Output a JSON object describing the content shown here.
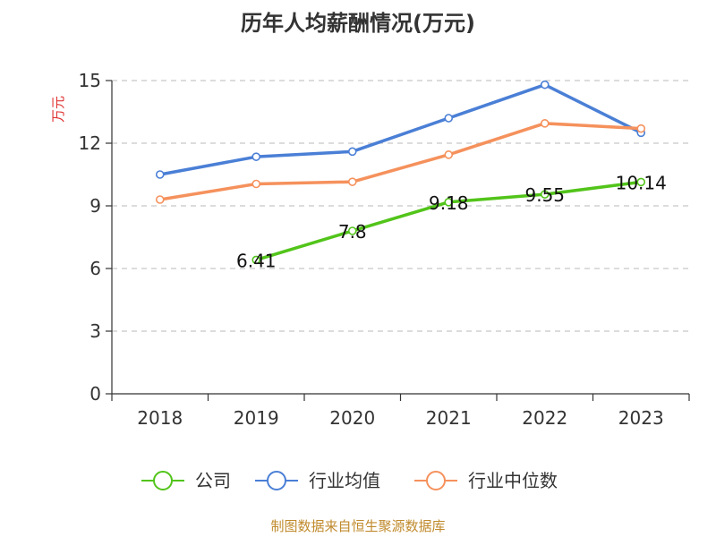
{
  "chart_data": {
    "type": "line",
    "title": "历年人均薪酬情况(万元)",
    "ylabel": "万元",
    "xlabel": "",
    "categories": [
      "2018",
      "2019",
      "2020",
      "2021",
      "2022",
      "2023"
    ],
    "ylim": [
      0,
      15
    ],
    "yticks": [
      "0",
      "3",
      "6",
      "9",
      "12",
      "15"
    ],
    "grid": true,
    "legend_position": "bottom",
    "series": [
      {
        "name": "公司",
        "color": "#52c41a",
        "values": [
          null,
          6.41,
          7.8,
          9.18,
          9.55,
          10.14
        ],
        "labels": [
          "",
          "6.41",
          "7.8",
          "9.18",
          "9.55",
          "10.14"
        ]
      },
      {
        "name": "行业均值",
        "color": "#4a7fd6",
        "values": [
          10.5,
          11.35,
          11.6,
          13.2,
          14.8,
          12.5
        ]
      },
      {
        "name": "行业中位数",
        "color": "#f5915c",
        "values": [
          9.3,
          10.05,
          10.15,
          11.45,
          12.95,
          12.7
        ]
      }
    ]
  },
  "footer": {
    "source": "制图数据来自恒生聚源数据库"
  }
}
